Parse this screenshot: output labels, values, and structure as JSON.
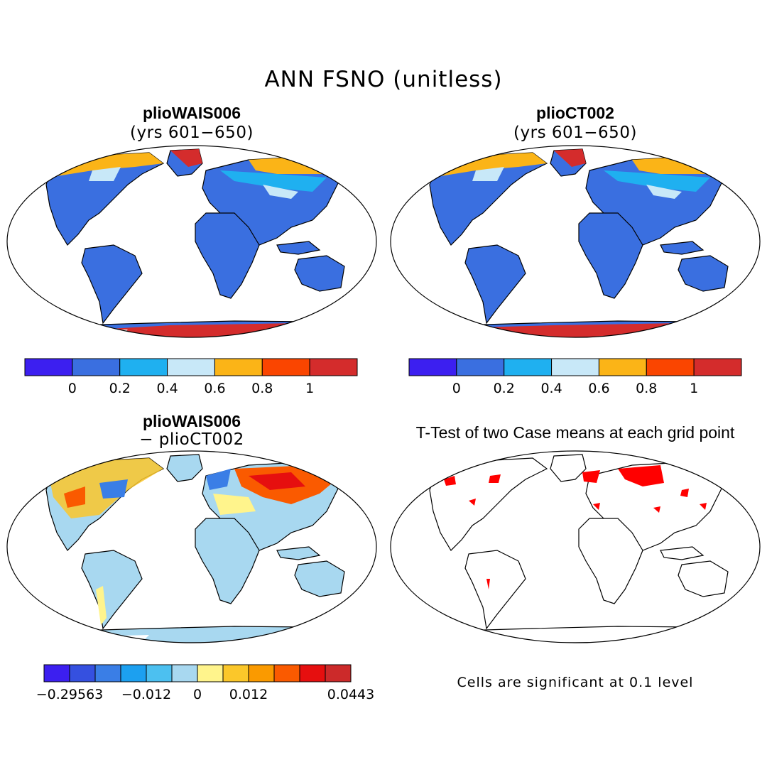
{
  "title": "ANN FSNO (unitless)",
  "panels": [
    {
      "id": "p1",
      "title": "plioWAIS006",
      "subtitle": "(yrs 601−650)"
    },
    {
      "id": "p2",
      "title": "plioCT002",
      "subtitle": "(yrs 601−650)"
    },
    {
      "id": "p3",
      "title": "plioWAIS006",
      "subtitle": "− plioCT002"
    },
    {
      "id": "p4",
      "title": "T-Test of two Case means at each grid point",
      "subtitle": ""
    }
  ],
  "colorbar_main": {
    "colors": [
      "#3c1ff0",
      "#3a6fe0",
      "#1fb0f0",
      "#c8e8f8",
      "#fbb417",
      "#fa4500",
      "#d42c2c"
    ],
    "labels": [
      "0",
      "0.2",
      "0.4",
      "0.6",
      "0.8",
      "1"
    ]
  },
  "colorbar_diff": {
    "colors": [
      "#3c1ff0",
      "#3550e0",
      "#3a7ee6",
      "#1ca0f0",
      "#4cc0f0",
      "#a8d8f0",
      "#fff48c",
      "#fbc72a",
      "#fa9a00",
      "#fa5a00",
      "#e60f0f",
      "#cc2a2a"
    ],
    "labels": [
      "−0.29563",
      "−0.012",
      "0",
      "0.012",
      "0.0443"
    ]
  },
  "note": "Cells are significant at 0.1 level",
  "colors": {
    "land_main": "#3a6fe0",
    "land_diff": "#a8d8f0",
    "significant": "#ff0000",
    "antarctic": "#d42c2c"
  }
}
